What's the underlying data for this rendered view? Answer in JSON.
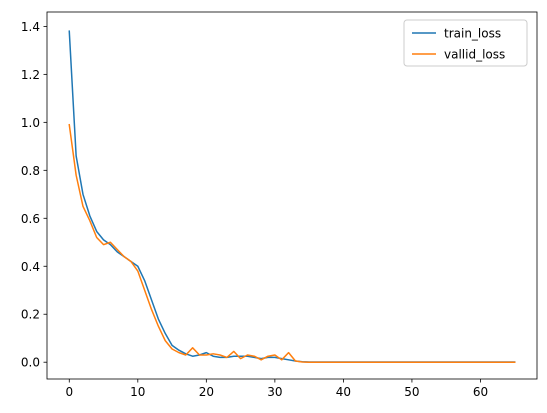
{
  "chart_data": {
    "type": "line",
    "title": "",
    "xlabel": "",
    "ylabel": "",
    "xlim": [
      -3.25,
      68.25
    ],
    "ylim": [
      -0.07,
      1.46
    ],
    "xticks": [
      0,
      10,
      20,
      30,
      40,
      50,
      60
    ],
    "yticks": [
      0.0,
      0.2,
      0.4,
      0.6,
      0.8,
      1.0,
      1.2,
      1.4
    ],
    "ytick_labels": [
      "0.0",
      "0.2",
      "0.4",
      "0.6",
      "0.8",
      "1.0",
      "1.2",
      "1.4"
    ],
    "legend_position": "top-right",
    "grid": false,
    "x": [
      0,
      1,
      2,
      3,
      4,
      5,
      6,
      7,
      8,
      9,
      10,
      11,
      12,
      13,
      14,
      15,
      16,
      17,
      18,
      19,
      20,
      21,
      22,
      23,
      24,
      25,
      26,
      27,
      28,
      29,
      30,
      31,
      32,
      33,
      34,
      35,
      36,
      37,
      38,
      39,
      40,
      41,
      42,
      43,
      44,
      45,
      46,
      47,
      48,
      49,
      50,
      51,
      52,
      53,
      54,
      55,
      56,
      57,
      58,
      59,
      60,
      61,
      62,
      63,
      64,
      65
    ],
    "series": [
      {
        "name": "train_loss",
        "color": "#1f77b4",
        "values": [
          1.38,
          0.86,
          0.7,
          0.61,
          0.545,
          0.51,
          0.49,
          0.46,
          0.44,
          0.42,
          0.4,
          0.34,
          0.26,
          0.18,
          0.12,
          0.07,
          0.05,
          0.035,
          0.025,
          0.03,
          0.04,
          0.025,
          0.02,
          0.02,
          0.025,
          0.025,
          0.025,
          0.02,
          0.015,
          0.02,
          0.02,
          0.015,
          0.01,
          0.005,
          0.002,
          0.001,
          0.001,
          0.001,
          0.001,
          0.001,
          0.001,
          0.001,
          0.001,
          0.001,
          0.001,
          0.001,
          0.001,
          0.001,
          0.001,
          0.001,
          0.001,
          0.001,
          0.001,
          0.001,
          0.001,
          0.001,
          0.001,
          0.001,
          0.001,
          0.001,
          0.001,
          0.001,
          0.001,
          0.001,
          0.001,
          0.001
        ]
      },
      {
        "name": "vallid_loss",
        "color": "#ff7f0e",
        "values": [
          0.99,
          0.78,
          0.65,
          0.59,
          0.52,
          0.49,
          0.5,
          0.47,
          0.44,
          0.42,
          0.38,
          0.3,
          0.22,
          0.15,
          0.09,
          0.055,
          0.04,
          0.03,
          0.06,
          0.03,
          0.03,
          0.035,
          0.03,
          0.02,
          0.045,
          0.015,
          0.03,
          0.025,
          0.01,
          0.025,
          0.03,
          0.01,
          0.04,
          0.005,
          0.001,
          0.0,
          0.0,
          0.0,
          0.0,
          0.0,
          0.0,
          0.0,
          0.0,
          0.0,
          0.0,
          0.0,
          0.0,
          0.0,
          0.0,
          0.0,
          0.0,
          0.0,
          0.0,
          0.0,
          0.0,
          0.0,
          0.0,
          0.0,
          0.0,
          0.0,
          0.0,
          0.0,
          0.0,
          0.0,
          0.0,
          0.0
        ]
      }
    ]
  }
}
